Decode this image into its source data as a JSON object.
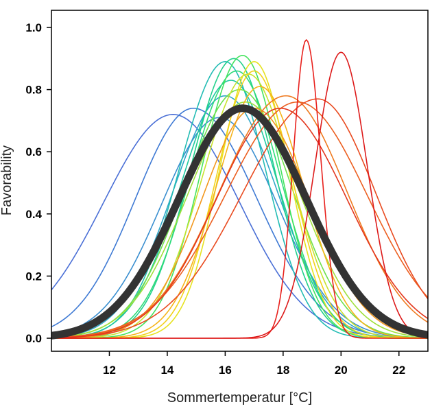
{
  "chart_data": {
    "type": "line",
    "title": "",
    "xlabel": "Sommertemperatur [°C]",
    "ylabel": "Favorability",
    "xlim": [
      10.0,
      23.0
    ],
    "ylim": [
      0.0,
      1.0
    ],
    "x_ticks": [
      12,
      14,
      16,
      18,
      20,
      22
    ],
    "x_tick_labels": [
      "12",
      "14",
      "16",
      "18",
      "20",
      "22"
    ],
    "y_ticks": [
      0.0,
      0.2,
      0.4,
      0.6,
      0.8,
      1.0
    ],
    "y_tick_labels": [
      "0.0",
      "0.2",
      "0.4",
      "0.6",
      "0.8",
      "1.0"
    ],
    "grid": false,
    "legend": "none",
    "mean_curve": {
      "peak_x": 16.6,
      "peak_y": 0.74,
      "sigma": 2.2,
      "color": "#333333"
    },
    "curves": [
      {
        "peak_x": 14.2,
        "peak_y": 0.72,
        "sigma_left": 2.4,
        "sigma_right": 2.3,
        "color": "#4a6fd6"
      },
      {
        "peak_x": 14.9,
        "peak_y": 0.74,
        "sigma_left": 2.0,
        "sigma_right": 2.2,
        "color": "#3f7ad4"
      },
      {
        "peak_x": 15.8,
        "peak_y": 0.71,
        "sigma_left": 2.0,
        "sigma_right": 2.0,
        "color": "#3a8fd0"
      },
      {
        "peak_x": 16.0,
        "peak_y": 0.78,
        "sigma_left": 1.8,
        "sigma_right": 1.8,
        "color": "#2fa7c8"
      },
      {
        "peak_x": 16.0,
        "peak_y": 0.89,
        "sigma_left": 1.6,
        "sigma_right": 1.4,
        "color": "#23bcb4"
      },
      {
        "peak_x": 16.2,
        "peak_y": 0.83,
        "sigma_left": 1.7,
        "sigma_right": 1.6,
        "color": "#1ec9a0"
      },
      {
        "peak_x": 16.3,
        "peak_y": 0.9,
        "sigma_left": 1.5,
        "sigma_right": 1.4,
        "color": "#22d08c"
      },
      {
        "peak_x": 16.4,
        "peak_y": 0.86,
        "sigma_left": 1.6,
        "sigma_right": 1.5,
        "color": "#2edc78"
      },
      {
        "peak_x": 16.6,
        "peak_y": 0.91,
        "sigma_left": 1.4,
        "sigma_right": 1.3,
        "color": "#45e35e"
      },
      {
        "peak_x": 16.5,
        "peak_y": 0.8,
        "sigma_left": 1.9,
        "sigma_right": 1.8,
        "color": "#6ee04a"
      },
      {
        "peak_x": 16.7,
        "peak_y": 0.76,
        "sigma_left": 2.0,
        "sigma_right": 1.9,
        "color": "#9fe03a"
      },
      {
        "peak_x": 16.8,
        "peak_y": 0.85,
        "sigma_left": 1.6,
        "sigma_right": 1.5,
        "color": "#c8e22e"
      },
      {
        "peak_x": 17.0,
        "peak_y": 0.89,
        "sigma_left": 1.2,
        "sigma_right": 1.2,
        "color": "#e6e21f"
      },
      {
        "peak_x": 17.0,
        "peak_y": 0.86,
        "sigma_left": 1.3,
        "sigma_right": 1.3,
        "color": "#f2d11a"
      },
      {
        "peak_x": 17.2,
        "peak_y": 0.81,
        "sigma_left": 1.5,
        "sigma_right": 1.5,
        "color": "#f5b41a"
      },
      {
        "peak_x": 17.0,
        "peak_y": 0.74,
        "sigma_left": 1.8,
        "sigma_right": 1.9,
        "color": "#f2971c"
      },
      {
        "peak_x": 18.1,
        "peak_y": 0.78,
        "sigma_left": 2.3,
        "sigma_right": 2.1,
        "color": "#ef7a1f"
      },
      {
        "peak_x": 18.5,
        "peak_y": 0.76,
        "sigma_left": 2.5,
        "sigma_right": 2.4,
        "color": "#ec5f20"
      },
      {
        "peak_x": 19.2,
        "peak_y": 0.77,
        "sigma_left": 2.6,
        "sigma_right": 2.0,
        "color": "#e94a1f"
      },
      {
        "peak_x": 17.9,
        "peak_y": 0.74,
        "sigma_left": 2.2,
        "sigma_right": 2.3,
        "color": "#e3361d"
      },
      {
        "peak_x": 18.8,
        "peak_y": 0.96,
        "sigma_left": 0.45,
        "sigma_right": 0.5,
        "color": "#e8201c"
      },
      {
        "peak_x": 20.0,
        "peak_y": 0.92,
        "sigma_left": 0.9,
        "sigma_right": 0.9,
        "color": "#dd1a1a"
      }
    ]
  }
}
